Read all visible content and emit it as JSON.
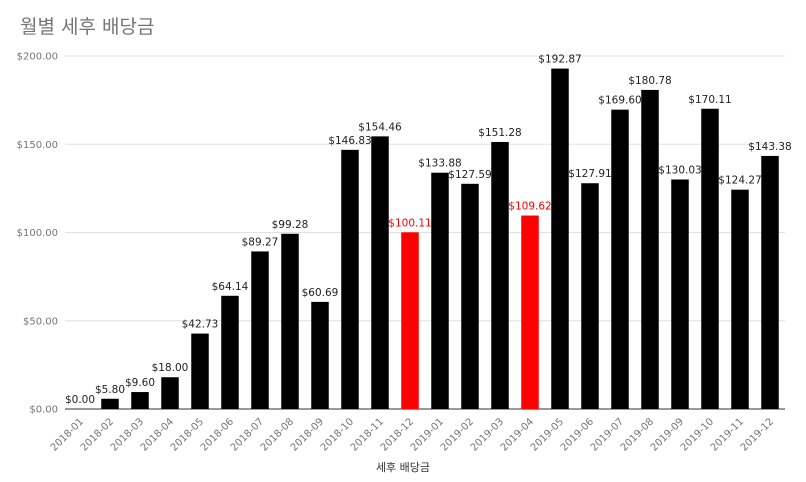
{
  "chart_data": {
    "type": "bar",
    "title": "월별 세후 배당금",
    "xlabel": "세후 배당금",
    "ylabel": "",
    "ylim": [
      0,
      200
    ],
    "y_ticks": [
      "$0.00",
      "$50.00",
      "$100.00",
      "$150.00",
      "$200.00"
    ],
    "y_tick_values": [
      0,
      50,
      100,
      150,
      200
    ],
    "grid": true,
    "legend": "none",
    "default_color": "#000000",
    "highlight_color": "#ff0000",
    "label_color": "#222222",
    "categories": [
      "2018-01",
      "2018-02",
      "2018-03",
      "2018-04",
      "2018-05",
      "2018-06",
      "2018-07",
      "2018-08",
      "2018-09",
      "2018-10",
      "2018-11",
      "2018-12",
      "2019-01",
      "2019-02",
      "2019-03",
      "2019-04",
      "2019-05",
      "2019-06",
      "2019-07",
      "2019-08",
      "2019-09",
      "2019-10",
      "2019-11",
      "2019-12"
    ],
    "values": [
      0.0,
      5.8,
      9.6,
      18.0,
      42.73,
      64.14,
      89.27,
      99.28,
      60.69,
      146.83,
      154.46,
      100.11,
      133.88,
      127.59,
      151.28,
      109.62,
      192.87,
      127.91,
      169.6,
      180.78,
      130.03,
      170.11,
      124.27,
      143.38
    ],
    "labels": [
      "$0.00",
      "$5.80",
      "$9.60",
      "$18.00",
      "$42.73",
      "$64.14",
      "$89.27",
      "$99.28",
      "$60.69",
      "$146.83",
      "$154.46",
      "$100.11",
      "$133.88",
      "$127.59",
      "$151.28",
      "$109.62",
      "$192.87",
      "$127.91",
      "$169.60",
      "$180.78",
      "$130.03",
      "$170.11",
      "$124.27",
      "$143.38"
    ],
    "highlighted": [
      "2018-12",
      "2019-04"
    ]
  }
}
